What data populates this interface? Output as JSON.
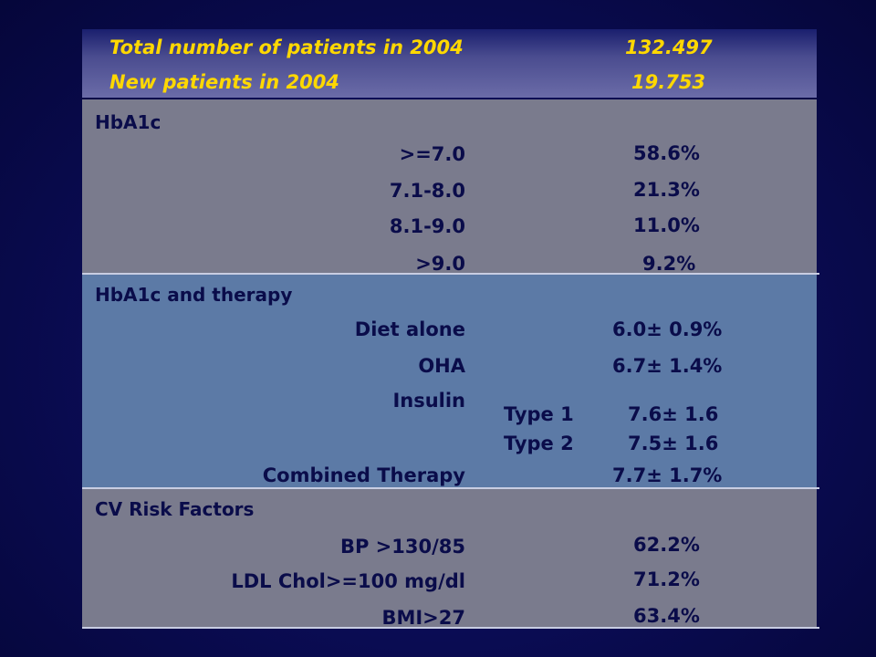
{
  "header": {
    "total_label": "Total number of patients in 2004",
    "total_value": "132.497",
    "new_label": "New patients in 2004",
    "new_value": "19.753"
  },
  "hba1c": {
    "title": "HbA1c",
    "rows": [
      {
        "label": ">=7.0",
        "value": "58.6%"
      },
      {
        "label": "7.1-8.0",
        "value": "21.3%"
      },
      {
        "label": "8.1-9.0",
        "value": "11.0%"
      },
      {
        "label": ">9.0",
        "value": "9.2%"
      }
    ]
  },
  "therapy": {
    "title": "HbA1c and therapy",
    "diet_label": "Diet alone",
    "diet_value": "6.0± 0.9%",
    "oha_label": "OHA",
    "oha_value": "6.7± 1.4%",
    "insulin_label": "Insulin",
    "type1_label": "Type 1",
    "type1_value": "7.6± 1.6",
    "type2_label": "Type 2",
    "type2_value": "7.5± 1.6",
    "combined_label": "Combined Therapy",
    "combined_value": "7.7± 1.7%"
  },
  "cv": {
    "title": "CV Risk Factors",
    "rows": [
      {
        "label": "BP >130/85",
        "value": "62.2%"
      },
      {
        "label": "LDL Chol>=100 mg/dl",
        "value": "71.2%"
      },
      {
        "label": "BMI>27",
        "value": "63.4%"
      }
    ]
  }
}
